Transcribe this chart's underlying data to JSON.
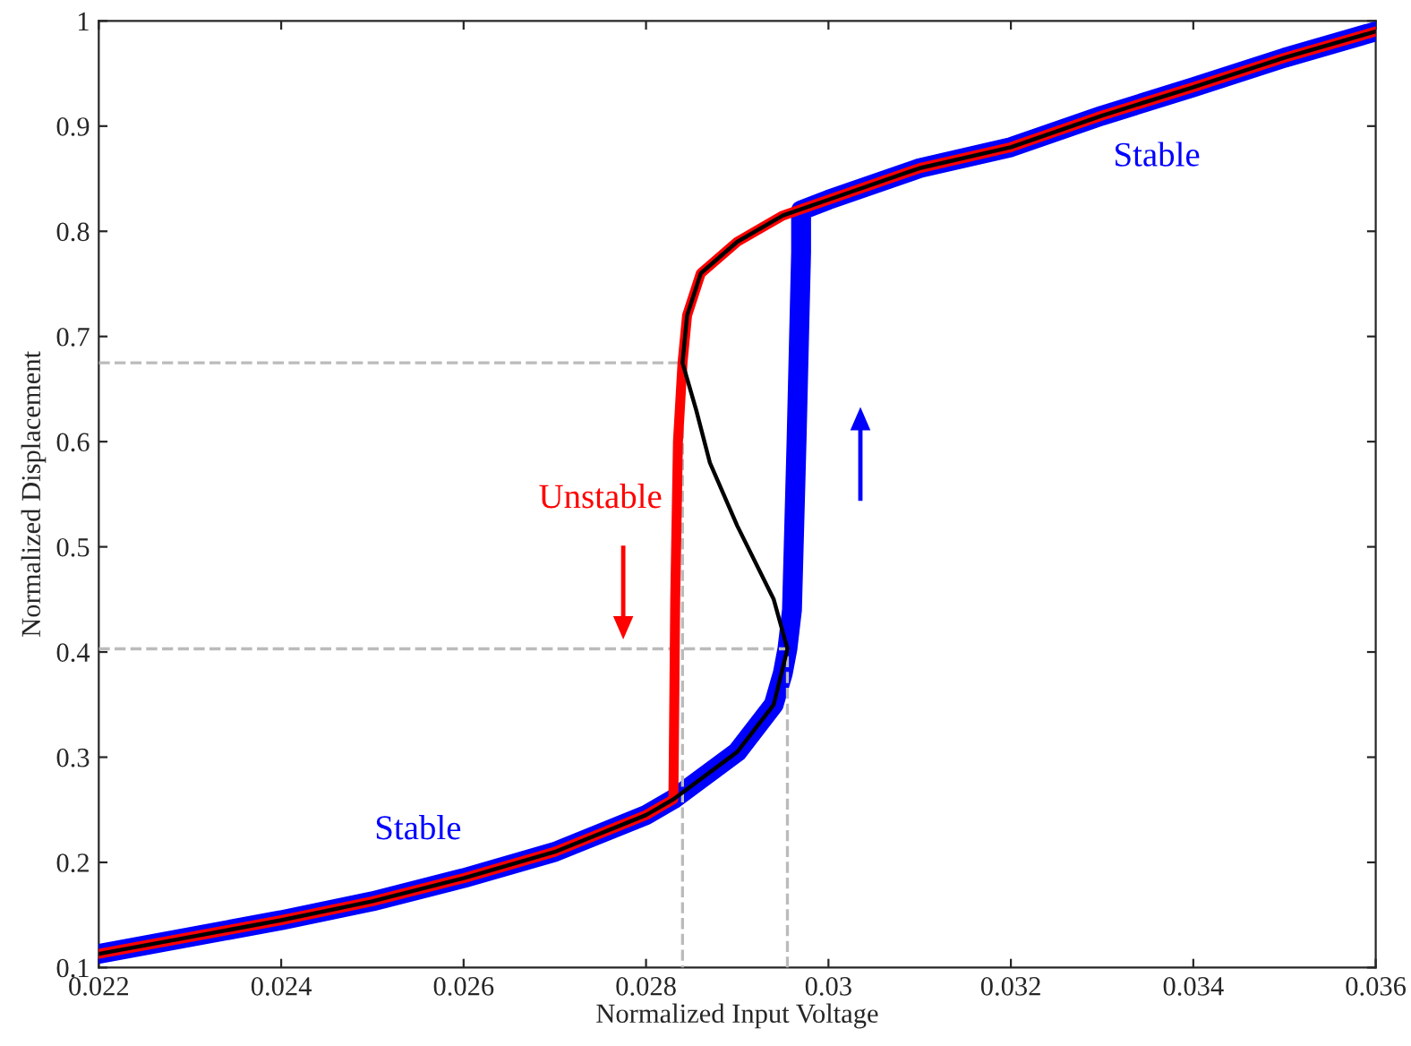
{
  "chart_data": {
    "type": "line",
    "xlabel": "Normalized Input Voltage",
    "ylabel": "Normalized Displacement",
    "xlim": [
      0.022,
      0.036
    ],
    "ylim": [
      0.1,
      1
    ],
    "xticks": [
      0.022,
      0.024,
      0.026,
      0.028,
      0.03,
      0.032,
      0.034,
      0.036
    ],
    "yticks": [
      0.1,
      0.2,
      0.3,
      0.4,
      0.5,
      0.6,
      0.7,
      0.8,
      0.9,
      1
    ],
    "grid": false,
    "legend": false,
    "series": [
      {
        "color": "#0000ff",
        "x": [
          0.022,
          0.024,
          0.025,
          0.026,
          0.027,
          0.028,
          0.0283,
          0.029,
          0.0294,
          0.0295,
          0.02955,
          0.0296,
          0.02965,
          0.0297,
          0.0297,
          0.03,
          0.031,
          0.032,
          0.033,
          0.034,
          0.035,
          0.036
        ],
        "values": [
          0.113,
          0.145,
          0.163,
          0.185,
          0.21,
          0.245,
          0.26,
          0.305,
          0.35,
          0.38,
          0.403,
          0.44,
          0.6,
          0.78,
          0.82,
          0.83,
          0.86,
          0.88,
          0.91,
          0.937,
          0.965,
          0.99
        ]
      },
      {
        "color": "#ff0000",
        "x": [
          0.022,
          0.024,
          0.025,
          0.026,
          0.027,
          0.028,
          0.0283,
          0.02832,
          0.02835,
          0.0284,
          0.02845,
          0.0286,
          0.029,
          0.0295,
          0.03,
          0.031,
          0.032,
          0.033,
          0.034,
          0.035,
          0.036
        ],
        "values": [
          0.113,
          0.145,
          0.163,
          0.185,
          0.21,
          0.245,
          0.26,
          0.45,
          0.6,
          0.675,
          0.72,
          0.76,
          0.79,
          0.815,
          0.83,
          0.86,
          0.88,
          0.91,
          0.937,
          0.965,
          0.99
        ]
      },
      {
        "color": "#000000",
        "x": [
          0.022,
          0.024,
          0.025,
          0.026,
          0.027,
          0.028,
          0.0283,
          0.029,
          0.0294,
          0.02955,
          0.0294,
          0.029,
          0.0287,
          0.02855,
          0.0284,
          0.02845,
          0.0286,
          0.029,
          0.0295,
          0.03,
          0.031,
          0.032,
          0.033,
          0.034,
          0.035,
          0.036
        ],
        "values": [
          0.113,
          0.145,
          0.163,
          0.185,
          0.21,
          0.245,
          0.26,
          0.305,
          0.35,
          0.403,
          0.45,
          0.52,
          0.58,
          0.63,
          0.675,
          0.72,
          0.76,
          0.79,
          0.815,
          0.83,
          0.86,
          0.88,
          0.91,
          0.937,
          0.965,
          0.99
        ]
      },
      {
        "color": "#bbbbbb",
        "line_style": "dashed",
        "x": [
          0.022,
          0.0284,
          0.0284
        ],
        "values": [
          0.675,
          0.675,
          0.1
        ]
      },
      {
        "color": "#bbbbbb",
        "line_style": "dashed",
        "x": [
          0.022,
          0.02955,
          0.02955
        ],
        "values": [
          0.403,
          0.403,
          0.1
        ]
      }
    ],
    "annotations": [
      "Stable",
      "Stable",
      "Unstable"
    ]
  }
}
